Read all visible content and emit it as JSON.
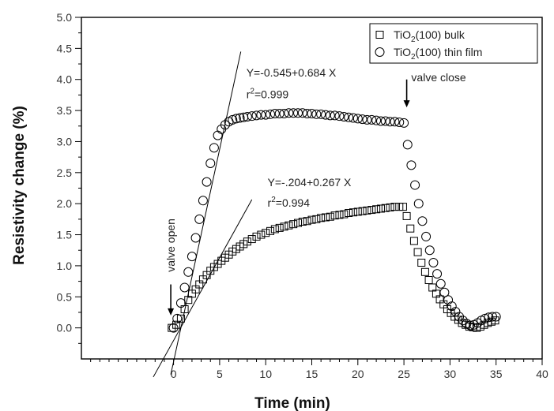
{
  "chart_data": {
    "type": "scatter",
    "xlabel": "Time (min)",
    "ylabel": "Resistivity change (%)",
    "xlim": [
      -10,
      40
    ],
    "ylim": [
      -0.5,
      5.0
    ],
    "x_ticks": [
      {
        "v": 0,
        "label": "0"
      },
      {
        "v": 5,
        "label": "5"
      },
      {
        "v": 10,
        "label": "10"
      },
      {
        "v": 15,
        "label": "15"
      },
      {
        "v": 20,
        "label": "20"
      },
      {
        "v": 25,
        "label": "25"
      },
      {
        "v": 30,
        "label": "30"
      },
      {
        "v": 35,
        "label": "35"
      },
      {
        "v": 40,
        "label": "40"
      }
    ],
    "x_minor_ticks": [
      -9,
      -8,
      -7,
      -6,
      -5,
      -4,
      -3,
      -2,
      -1,
      1,
      2,
      3,
      4,
      6,
      7,
      8,
      9,
      11,
      12,
      13,
      14,
      16,
      17,
      18,
      19,
      21,
      22,
      23,
      24,
      26,
      27,
      28,
      29,
      31,
      32,
      33,
      34,
      36,
      37,
      38,
      39
    ],
    "y_ticks": [
      {
        "v": 0.0,
        "label": "0.0"
      },
      {
        "v": 0.5,
        "label": "0.5"
      },
      {
        "v": 1.0,
        "label": "1.0"
      },
      {
        "v": 1.5,
        "label": "1.5"
      },
      {
        "v": 2.0,
        "label": "2.0"
      },
      {
        "v": 2.5,
        "label": "2.5"
      },
      {
        "v": 3.0,
        "label": "3.0"
      },
      {
        "v": 3.5,
        "label": "3.5"
      },
      {
        "v": 4.0,
        "label": "4.0"
      },
      {
        "v": 4.5,
        "label": "4.5"
      },
      {
        "v": 5.0,
        "label": "5.0"
      }
    ],
    "legend": {
      "position": "top-right",
      "entries": [
        {
          "marker": "square",
          "text": "TiO",
          "sub": "2",
          "text2": "(100) bulk"
        },
        {
          "marker": "circle",
          "text": "TiO",
          "sub": "2",
          "text2": "(100) thin film"
        }
      ]
    },
    "series": [
      {
        "marker": "square",
        "x": [
          -0.2,
          0.3,
          0.8,
          1.2,
          1.6,
          2.0,
          2.4,
          2.8,
          3.2,
          3.6,
          4.0,
          4.4,
          4.8,
          5.2,
          5.6,
          6.0,
          6.4,
          6.8,
          7.2,
          7.6,
          8.0,
          8.5,
          9.0,
          9.5,
          10.0,
          10.5,
          11.0,
          11.5,
          12.0,
          12.5,
          13.0,
          13.5,
          14.0,
          14.5,
          15.0,
          15.5,
          16.0,
          16.5,
          17.0,
          17.5,
          18.0,
          18.5,
          19.0,
          19.5,
          20.0,
          20.5,
          21.0,
          21.5,
          22.0,
          22.5,
          23.0,
          23.5,
          24.0,
          24.5,
          24.9,
          25.3,
          25.7,
          26.1,
          26.5,
          26.9,
          27.3,
          27.7,
          28.1,
          28.5,
          28.9,
          29.3,
          29.7,
          30.1,
          30.5,
          30.9,
          31.3,
          31.7,
          32.1,
          32.5,
          32.9,
          33.3,
          33.7,
          34.1,
          34.5,
          34.9
        ],
        "y": [
          0.0,
          0.05,
          0.15,
          0.3,
          0.45,
          0.55,
          0.62,
          0.7,
          0.78,
          0.85,
          0.92,
          0.98,
          1.03,
          1.08,
          1.13,
          1.18,
          1.23,
          1.27,
          1.31,
          1.35,
          1.39,
          1.43,
          1.47,
          1.5,
          1.53,
          1.56,
          1.59,
          1.61,
          1.63,
          1.65,
          1.67,
          1.69,
          1.71,
          1.72,
          1.74,
          1.75,
          1.77,
          1.78,
          1.79,
          1.81,
          1.82,
          1.83,
          1.85,
          1.86,
          1.87,
          1.88,
          1.89,
          1.9,
          1.91,
          1.92,
          1.93,
          1.94,
          1.95,
          1.95,
          1.95,
          1.8,
          1.6,
          1.4,
          1.22,
          1.05,
          0.9,
          0.77,
          0.65,
          0.55,
          0.46,
          0.38,
          0.3,
          0.24,
          0.18,
          0.13,
          0.08,
          0.05,
          0.02,
          0.01,
          0.0,
          0.02,
          0.05,
          0.08,
          0.1,
          0.12
        ]
      },
      {
        "marker": "circle",
        "x": [
          0.0,
          0.4,
          0.8,
          1.2,
          1.6,
          2.0,
          2.4,
          2.8,
          3.2,
          3.6,
          4.0,
          4.4,
          4.8,
          5.2,
          5.6,
          6.0,
          6.4,
          6.8,
          7.2,
          7.6,
          8.0,
          8.5,
          9.0,
          9.5,
          10.0,
          10.5,
          11.0,
          11.5,
          12.0,
          12.5,
          13.0,
          13.5,
          14.0,
          14.5,
          15.0,
          15.5,
          16.0,
          16.5,
          17.0,
          17.5,
          18.0,
          18.5,
          19.0,
          19.5,
          20.0,
          20.5,
          21.0,
          21.5,
          22.0,
          22.5,
          23.0,
          23.5,
          24.0,
          24.5,
          25.0,
          25.4,
          25.8,
          26.2,
          26.6,
          27.0,
          27.4,
          27.8,
          28.2,
          28.6,
          29.0,
          29.4,
          29.8,
          30.2,
          30.6,
          31.0,
          31.4,
          31.8,
          32.2,
          32.6,
          33.0,
          33.4,
          33.8,
          34.2,
          34.6,
          35.0
        ],
        "y": [
          0.0,
          0.15,
          0.4,
          0.65,
          0.9,
          1.15,
          1.45,
          1.75,
          2.05,
          2.35,
          2.65,
          2.9,
          3.1,
          3.2,
          3.27,
          3.32,
          3.35,
          3.37,
          3.38,
          3.39,
          3.4,
          3.41,
          3.42,
          3.43,
          3.43,
          3.44,
          3.45,
          3.45,
          3.45,
          3.46,
          3.46,
          3.46,
          3.46,
          3.45,
          3.45,
          3.44,
          3.44,
          3.43,
          3.42,
          3.42,
          3.41,
          3.4,
          3.39,
          3.38,
          3.37,
          3.36,
          3.35,
          3.35,
          3.34,
          3.33,
          3.33,
          3.32,
          3.32,
          3.31,
          3.3,
          2.95,
          2.62,
          2.3,
          2.0,
          1.72,
          1.47,
          1.25,
          1.05,
          0.87,
          0.71,
          0.57,
          0.45,
          0.35,
          0.26,
          0.18,
          0.12,
          0.07,
          0.04,
          0.05,
          0.08,
          0.12,
          0.15,
          0.17,
          0.18,
          0.18
        ]
      }
    ],
    "fit_lines": [
      {
        "intercept": -0.545,
        "slope": 0.684,
        "x_from": -0.3,
        "x_to": 7.3
      },
      {
        "intercept": -0.204,
        "slope": 0.267,
        "x_from": -2.2,
        "x_to": 8.5
      }
    ],
    "annotations": [
      {
        "id": "fit1-eq",
        "text": "Y=-0.545+0.684 X",
        "x": 7.9,
        "y": 4.05
      },
      {
        "id": "fit1-r2",
        "pre": "r",
        "sup": "2",
        "post": "=0.999",
        "x": 7.9,
        "y": 3.7
      },
      {
        "id": "fit2-eq",
        "text": "Y=-.204+0.267 X",
        "x": 10.2,
        "y": 2.28
      },
      {
        "id": "fit2-r2",
        "pre": "r",
        "sup": "2",
        "post": "=0.994",
        "x": 10.2,
        "y": 1.95
      }
    ],
    "arrows": [
      {
        "id": "valve-open",
        "label": "valve open",
        "x": -0.3,
        "y_from": 0.7,
        "y_to": 0.2,
        "label_y": 0.9,
        "vertical": true
      },
      {
        "id": "valve-close",
        "label": "valve close",
        "x": 25.3,
        "y_from": 4.0,
        "y_to": 3.55,
        "label_x": 25.8,
        "label_y": 3.97,
        "vertical": false
      }
    ]
  }
}
